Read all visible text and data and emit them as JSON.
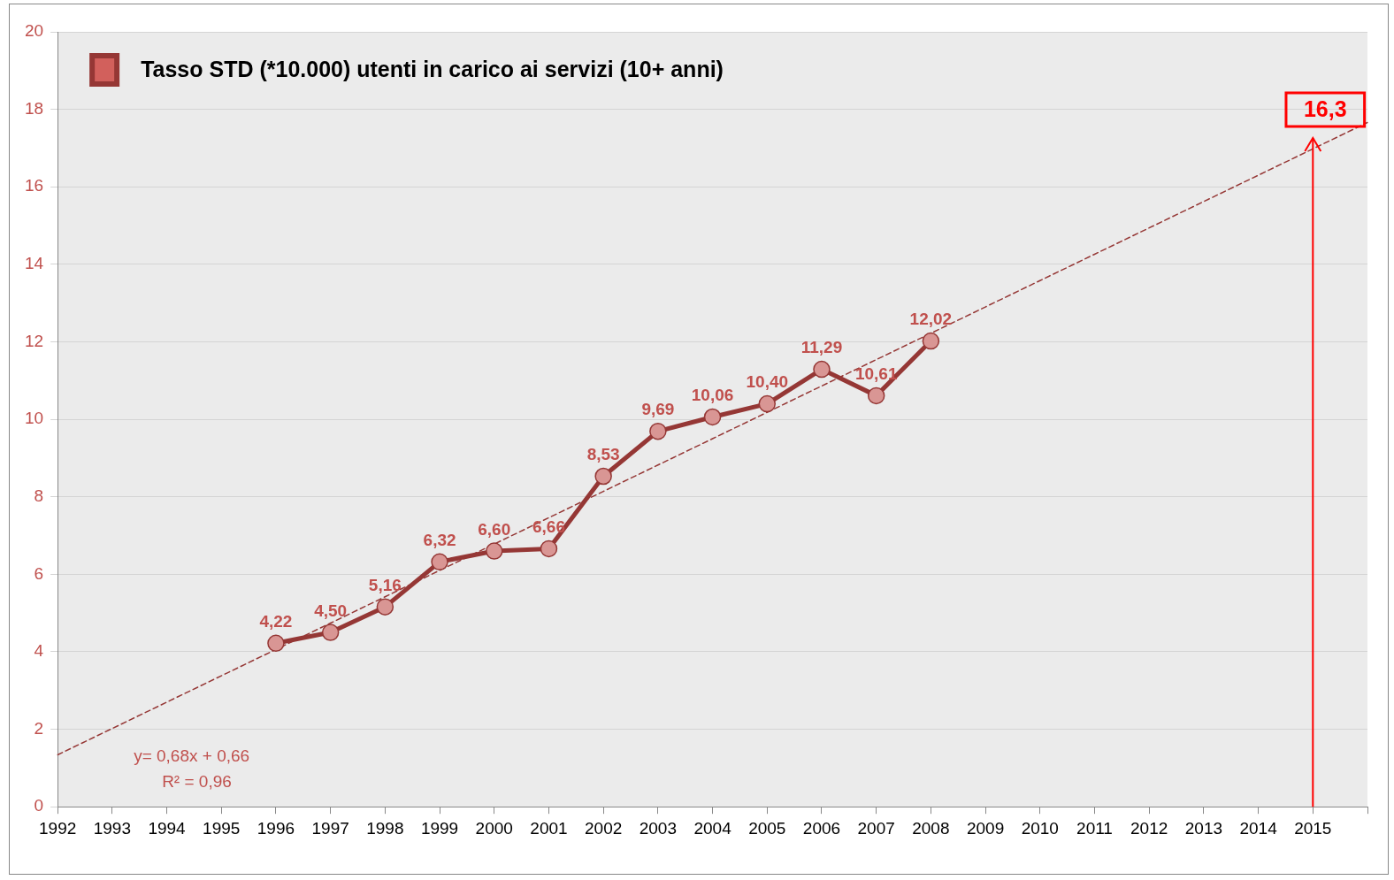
{
  "chart_data": {
    "type": "line",
    "categories": [
      "1992",
      "1993",
      "1994",
      "1995",
      "1996",
      "1997",
      "1998",
      "1999",
      "2000",
      "2001",
      "2002",
      "2003",
      "2004",
      "2005",
      "2006",
      "2007",
      "2008",
      "2009",
      "2010",
      "2011",
      "2012",
      "2013",
      "2014",
      "2015",
      null
    ],
    "ylim": [
      0,
      20
    ],
    "yticks": [
      0,
      2,
      4,
      6,
      8,
      10,
      12,
      14,
      16,
      18,
      20
    ],
    "grid": "y",
    "legend": "top left",
    "marker": "circle",
    "series": [
      {
        "name": "Tasso STD (*10.000) utenti in carico ai servizi (10+ anni)",
        "color": "#953735",
        "values": [
          null,
          null,
          null,
          null,
          4.22,
          4.5,
          5.16,
          6.32,
          6.6,
          6.66,
          8.53,
          9.69,
          10.06,
          10.4,
          11.29,
          10.61,
          12.02,
          null,
          null,
          null,
          null,
          null,
          null,
          null,
          null
        ],
        "value_labels": [
          null,
          null,
          null,
          null,
          "4,22",
          "4,50",
          "5,16",
          "6,32",
          "6,60",
          "6,66",
          "8,53",
          "9,69",
          "10,06",
          "10,40",
          "11,29",
          "10,61",
          "12,02",
          null,
          null,
          null,
          null,
          null,
          null,
          null,
          null
        ]
      },
      {
        "type": "line",
        "color": "#953735",
        "line_style": "dashed",
        "marker": "none",
        "values": [
          1.34,
          2.02,
          2.7,
          3.38,
          4.06,
          4.74,
          5.42,
          6.1,
          6.78,
          7.46,
          8.14,
          8.82,
          9.5,
          10.18,
          10.86,
          11.54,
          12.22,
          12.9,
          13.58,
          14.26,
          14.94,
          15.62,
          16.3,
          16.98,
          17.66
        ]
      }
    ],
    "ref_lines": [
      {
        "axis": "x",
        "value": "2015",
        "label": "16,3",
        "color": "#ff0000"
      }
    ],
    "annotations": [
      "y= 0,68x + 0,66",
      "R² = 0,96"
    ]
  }
}
